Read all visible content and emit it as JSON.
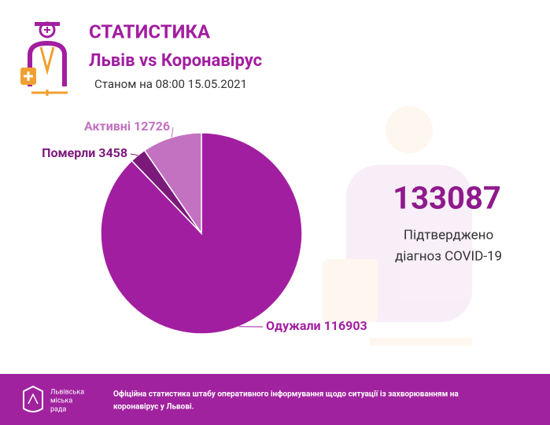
{
  "header": {
    "title": "СТАТИСТИКА",
    "subtitle": "Львів vs Коронавірус",
    "date": "Станом на 08:00 15.05.2021"
  },
  "chart_data": {
    "type": "pie",
    "categories": [
      "Одужали",
      "Померли",
      "Активні"
    ],
    "values": [
      116903,
      3458,
      12726
    ],
    "colors": [
      "#a21ea0",
      "#7b1a7b",
      "#c272c0"
    ],
    "start_angle": -90,
    "direction": "clockwise"
  },
  "summary": {
    "total": 133087,
    "caption": [
      "Підтверджено",
      "діагноз COVID-19"
    ]
  },
  "footer": {
    "logo": [
      "Львівська",
      "міська",
      "рада"
    ],
    "text": [
      "Офіційна статистика штабу оперативного інформування щодо ситуації із захворюванням на",
      "коронавірус у Львові."
    ]
  }
}
